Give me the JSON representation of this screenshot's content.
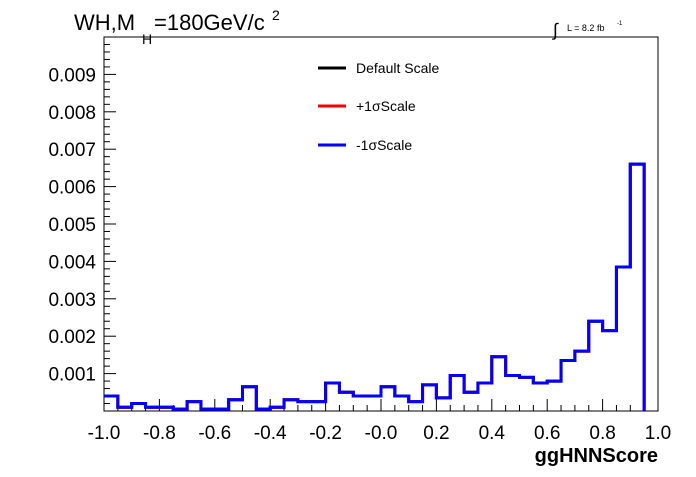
{
  "chart_data": {
    "type": "histogram",
    "title_parts": {
      "main": "WH,M",
      "sub": "H",
      "rest": "=180GeV/c",
      "sup": "2"
    },
    "lumi_label": {
      "integral": "∫",
      "text": "L = 8.2 fb",
      "sup": "-1"
    },
    "xlabel": "ggHNNScore",
    "ylabel": "",
    "xlim": [
      -1.0,
      1.0
    ],
    "ylim": [
      0.0,
      0.01
    ],
    "x_ticks": [
      "-1.0",
      "-0.8",
      "-0.6",
      "-0.4",
      "-0.2",
      "-0.0",
      "0.2",
      "0.4",
      "0.6",
      "0.8",
      "1.0"
    ],
    "y_ticks": [
      "0.001",
      "0.002",
      "0.003",
      "0.004",
      "0.005",
      "0.006",
      "0.007",
      "0.008",
      "0.009"
    ],
    "legend_position": "top-center",
    "bin_edges_start": -1.0,
    "bin_width": 0.05,
    "series": [
      {
        "name": "Default Scale",
        "color": "#000000",
        "values": [
          0.0004,
          0.0001,
          0.0002,
          0.0001,
          0.0001,
          5e-05,
          0.00025,
          5e-05,
          5e-05,
          0.0003,
          0.00065,
          5e-05,
          0.0001,
          0.0003,
          0.00025,
          0.00025,
          0.00075,
          0.0005,
          0.0004,
          0.0004,
          0.00065,
          0.0004,
          0.00025,
          0.0007,
          0.00035,
          0.00095,
          0.0005,
          0.00075,
          0.00145,
          0.00095,
          0.0009,
          0.00075,
          0.0008,
          0.00135,
          0.0016,
          0.0024,
          0.00215,
          0.00385,
          0.0066
        ]
      },
      {
        "name": "+1σScale",
        "color": "#ff0000",
        "values": [
          0.0004,
          0.0001,
          0.0002,
          0.0001,
          0.0001,
          5e-05,
          0.00025,
          5e-05,
          5e-05,
          0.0003,
          0.00065,
          5e-05,
          0.0001,
          0.0003,
          0.00025,
          0.00025,
          0.00075,
          0.0005,
          0.0004,
          0.0004,
          0.00065,
          0.0004,
          0.00025,
          0.0007,
          0.00035,
          0.00095,
          0.0005,
          0.00075,
          0.00145,
          0.00095,
          0.0009,
          0.00075,
          0.0008,
          0.00135,
          0.0016,
          0.0024,
          0.00215,
          0.00385,
          0.0066
        ]
      },
      {
        "name": "-1σScale",
        "color": "#0000ff",
        "values": [
          0.0004,
          0.0001,
          0.0002,
          0.0001,
          0.0001,
          5e-05,
          0.00025,
          5e-05,
          5e-05,
          0.0003,
          0.00065,
          5e-05,
          0.0001,
          0.0003,
          0.00025,
          0.00025,
          0.00075,
          0.0005,
          0.0004,
          0.0004,
          0.00065,
          0.0004,
          0.00025,
          0.0007,
          0.00035,
          0.00095,
          0.0005,
          0.00075,
          0.00145,
          0.00095,
          0.0009,
          0.00075,
          0.0008,
          0.00135,
          0.0016,
          0.0024,
          0.00215,
          0.00385,
          0.0066
        ]
      }
    ]
  }
}
